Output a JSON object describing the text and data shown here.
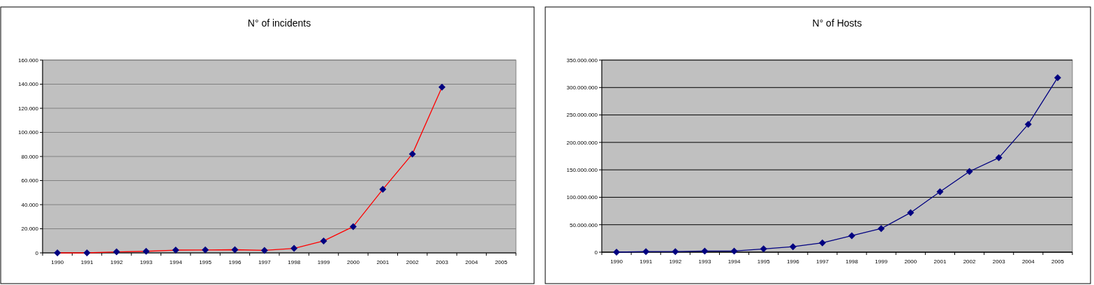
{
  "chart_data": [
    {
      "type": "line",
      "title": "N° of incidents",
      "categories": [
        "1990",
        "1991",
        "1992",
        "1993",
        "1994",
        "1995",
        "1996",
        "1997",
        "1998",
        "1999",
        "2000",
        "2001",
        "2002",
        "2003",
        "2004",
        "2005"
      ],
      "series": [
        {
          "color": "#ff0000",
          "values": [
            0,
            0,
            800,
            1300,
            2300,
            2400,
            2600,
            2100,
            3700,
            9900,
            21800,
            52700,
            82100,
            137500,
            null,
            null
          ]
        }
      ],
      "ylim": [
        0,
        160000
      ],
      "yticks": [
        {
          "value": 0,
          "label": "0"
        },
        {
          "value": 20000,
          "label": "20.000"
        },
        {
          "value": 40000,
          "label": "40.000"
        },
        {
          "value": 60000,
          "label": "60.000"
        },
        {
          "value": 80000,
          "label": "80.000"
        },
        {
          "value": 100000,
          "label": "100.000"
        },
        {
          "value": 120000,
          "label": "120.000"
        },
        {
          "value": 140000,
          "label": "140.000"
        },
        {
          "value": 160000,
          "label": "160.000"
        }
      ],
      "grid": "y",
      "marker": "diamond"
    },
    {
      "type": "line",
      "title": "N° of Hosts",
      "categories": [
        "1990",
        "1991",
        "1992",
        "1993",
        "1994",
        "1995",
        "1996",
        "1997",
        "1998",
        "1999",
        "2000",
        "2001",
        "2002",
        "2003",
        "2004",
        "2005"
      ],
      "series": [
        {
          "color": "#000080",
          "values": [
            0,
            1000000,
            1000000,
            2000000,
            2000000,
            6000000,
            10000000,
            17000000,
            30000000,
            43000000,
            72000000,
            110000000,
            147000000,
            172000000,
            233000000,
            318000000
          ]
        }
      ],
      "ylim": [
        0,
        350000000
      ],
      "yticks": [
        {
          "value": 0,
          "label": "0"
        },
        {
          "value": 50000000,
          "label": "50.000.000"
        },
        {
          "value": 100000000,
          "label": "100.000.000"
        },
        {
          "value": 150000000,
          "label": "150.000.000"
        },
        {
          "value": 200000000,
          "label": "200.000.000"
        },
        {
          "value": 250000000,
          "label": "250.000.000"
        },
        {
          "value": 300000000,
          "label": "300.000.000"
        },
        {
          "value": 350000000,
          "label": "350.000.000"
        }
      ],
      "grid": "y",
      "marker": "diamond"
    }
  ]
}
